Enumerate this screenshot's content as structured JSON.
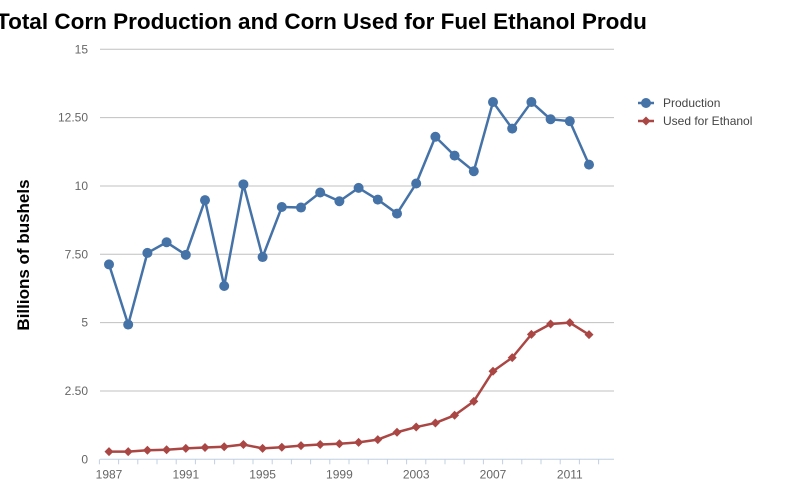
{
  "chart_data": {
    "type": "line",
    "title": "Total Corn Production and Corn Used for Fuel Ethanol Produ",
    "xlabel": "",
    "ylabel": "Billions of bushels",
    "ylim": [
      0,
      15
    ],
    "yticks": [
      "0",
      "2.50",
      "5",
      "7.50",
      "10",
      "12.50",
      "15"
    ],
    "xticks": [
      "1987",
      "1991",
      "1995",
      "1999",
      "2003",
      "2007",
      "2011"
    ],
    "grid": true,
    "legend_position": "right",
    "x": [
      1987,
      1988,
      1989,
      1990,
      1991,
      1992,
      1993,
      1994,
      1995,
      1996,
      1997,
      1998,
      1999,
      2000,
      2001,
      2002,
      2003,
      2004,
      2005,
      2006,
      2007,
      2008,
      2009,
      2010,
      2011,
      2012
    ],
    "series": [
      {
        "name": "Production",
        "color": "#4572a7",
        "marker": "circle",
        "values": [
          7.13,
          4.93,
          7.55,
          7.94,
          7.48,
          9.48,
          6.34,
          10.06,
          7.4,
          9.23,
          9.21,
          9.76,
          9.44,
          9.93,
          9.5,
          8.99,
          10.09,
          11.8,
          11.11,
          10.54,
          13.07,
          12.1,
          13.07,
          12.44,
          12.37,
          10.78
        ]
      },
      {
        "name": "Used for Ethanol",
        "color": "#aa4643",
        "marker": "diamond",
        "values": [
          0.28,
          0.28,
          0.33,
          0.35,
          0.4,
          0.43,
          0.46,
          0.54,
          0.4,
          0.44,
          0.5,
          0.54,
          0.57,
          0.62,
          0.72,
          0.99,
          1.18,
          1.33,
          1.61,
          2.12,
          3.22,
          3.72,
          4.57,
          4.95,
          5.0,
          4.56
        ]
      }
    ]
  }
}
